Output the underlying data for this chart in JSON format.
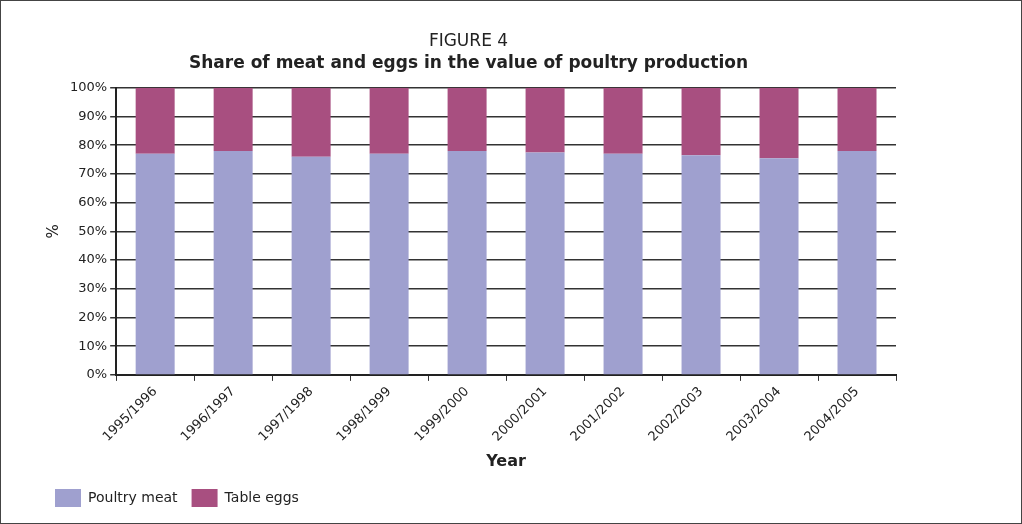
{
  "chart_data": {
    "type": "bar",
    "title": "FIGURE 4",
    "subtitle": "Share of meat and eggs in the value of poultry production",
    "xlabel": "Year",
    "ylabel": "%",
    "categories": [
      "1995/1996",
      "1996/1997",
      "1997/1998",
      "1998/1999",
      "1999/2000",
      "2000/2001",
      "2001/2002",
      "2002/2003",
      "2003/2004",
      "2004/2005"
    ],
    "series": [
      {
        "name": "Poultry meat",
        "color": "#9fa0cf",
        "values": [
          77,
          78,
          76,
          77,
          78,
          77.5,
          77,
          76.5,
          75.5,
          78
        ]
      },
      {
        "name": "Table eggs",
        "color": "#a84f80",
        "values": [
          23,
          22,
          24,
          23,
          22,
          22.5,
          23,
          23.5,
          24.5,
          22
        ]
      }
    ],
    "stacked": true,
    "ylim": [
      0,
      100
    ],
    "yticks": [
      {
        "value": 0,
        "label": "0%"
      },
      {
        "value": 10,
        "label": "10%"
      },
      {
        "value": 20,
        "label": "20%"
      },
      {
        "value": 30,
        "label": "30%"
      },
      {
        "value": 40,
        "label": "40%"
      },
      {
        "value": 50,
        "label": "50%"
      },
      {
        "value": 60,
        "label": "60%"
      },
      {
        "value": 70,
        "label": "70%"
      },
      {
        "value": 80,
        "label": "80%"
      },
      {
        "value": 90,
        "label": "90%"
      },
      {
        "value": 100,
        "label": "100%"
      }
    ],
    "grid": "y",
    "legend": "bottom left"
  }
}
